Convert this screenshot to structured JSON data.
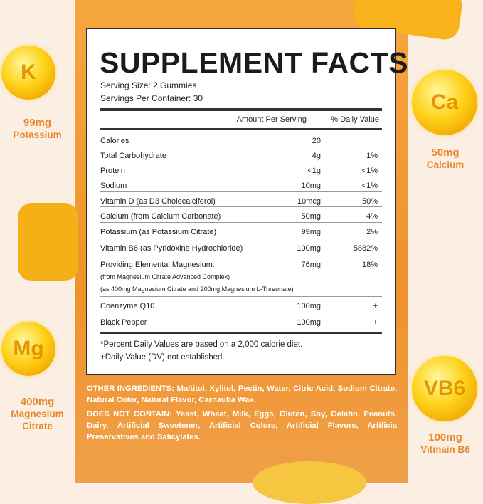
{
  "panel": {
    "title": "SUPPLEMENT FACTS",
    "serving_size": "Serving Size: 2 Gummies",
    "servings_per_container": "Servings Per Container: 30",
    "col_amount": "Amount Per Serving",
    "col_dv": "% Daily Value",
    "rows": [
      {
        "name": "Calories",
        "amount": "20",
        "dv": ""
      },
      {
        "name": "Total Carbohydrate",
        "amount": "4g",
        "dv": "1%"
      },
      {
        "name": "Protein",
        "amount": "<1g",
        "dv": "<1%"
      },
      {
        "name": "Sodium",
        "amount": "10mg",
        "dv": "<1%"
      },
      {
        "name": "Vitamin D (as D3 Cholecalciferol)",
        "amount": "10mcg",
        "dv": "50%"
      },
      {
        "name": "Calcium (from Calcium Carbonate)",
        "amount": "50mg",
        "dv": "4%"
      },
      {
        "name": "Potassium (as Potassium Citrate)",
        "amount": "99mg",
        "dv": "2%"
      },
      {
        "name": "Vitamin B6 (as Pyridoxine Hydrochloride)",
        "amount": "100mg",
        "dv": "5882%"
      },
      {
        "name": "Providing Elemental Magnesium:",
        "amount": "76mg",
        "dv": "18%",
        "sub1": "(from Magnesium Citrate Advanced Complex)",
        "sub2": "(as 400mg Magnesium Citrate and 200mg Magnesium L-Threonate)"
      },
      {
        "name": "Coenzyme Q10",
        "amount": "100mg",
        "dv": "+"
      },
      {
        "name": "Black Pepper",
        "amount": "100mg",
        "dv": "+"
      }
    ],
    "note1": "*Percent Daily Values are based on a 2,000 calorie diet.",
    "note2": "+Daily Value (DV) not established."
  },
  "ingredients": {
    "other_label": "OTHER INGREDIENTS:",
    "other_text": " Maltitol, Xylitol, Pectin, Water, Citric Acid, Sodium Citrate, Natural Color, Natural Flavor, Carnauba Wax.",
    "not_label": "DOES NOT CONTAIN:",
    "not_text": " Yeast, Wheat, Milk, Eggs, Gluten, Soy, Gelatin, Peanuts, Dairy, Artificial Sweetener, Artificial Colors, Artificial Flavors, Artificia Preservatives and Salicylates."
  },
  "badges": [
    {
      "symbol": "K",
      "amount": "99mg",
      "name": "Potassium"
    },
    {
      "symbol": "Ca",
      "amount": "50mg",
      "name": "Calcium"
    },
    {
      "symbol": "Mg",
      "amount": "400mg",
      "name": "Magnesium Citrate"
    },
    {
      "symbol": "VB6",
      "amount": "100mg",
      "name": "Vitmain B6"
    }
  ],
  "colors": {
    "orange": "#ef922a",
    "label_orange": "#e8872a",
    "gold": "#ffd21a"
  }
}
